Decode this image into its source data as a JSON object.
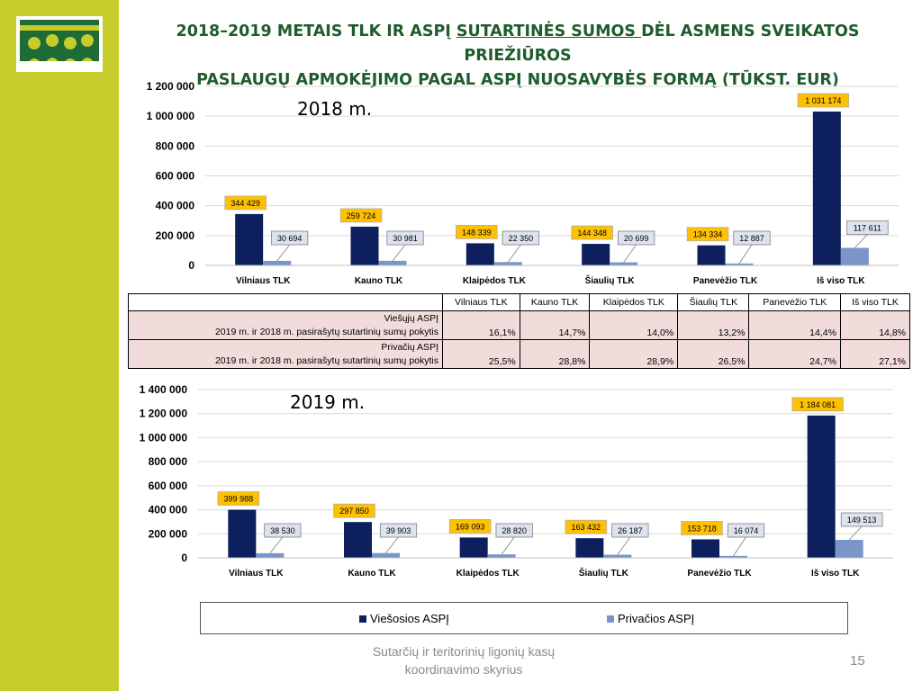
{
  "title": {
    "part1": "2018–2019 METAIS TLK IR ASPĮ ",
    "underlined": "SUTARTINĖS SUMOS ",
    "part2": "DĖL ASMENS SVEIKATOS PRIEŽIŪROS",
    "line2": "PASLAUGŲ APMOKĖJIMO PAGAL ASPĮ NUOSAVYBĖS FORMĄ (TŪKST. EUR)"
  },
  "colors": {
    "public": "#0d1f5c",
    "private": "#7a96c8",
    "sidebar": "#c5cc2b",
    "title": "#1e5c2b",
    "label_fill": "#ffc000"
  },
  "chart_data": [
    {
      "type": "bar",
      "title": "2018 m.",
      "categories": [
        "Vilniaus TLK",
        "Kauno TLK",
        "Klaipėdos TLK",
        "Šiaulių TLK",
        "Panevėžio TLK",
        "Iš viso TLK"
      ],
      "series": [
        {
          "name": "Viešosios ASPĮ",
          "values": [
            344429,
            259724,
            148339,
            144348,
            134334,
            1031174
          ],
          "labels": [
            "344 429",
            "259 724",
            "148 339",
            "144 348",
            "134 334",
            "1 031 174"
          ]
        },
        {
          "name": "Privačios ASPĮ",
          "values": [
            30694,
            30981,
            22350,
            20699,
            12887,
            117611
          ],
          "labels": [
            "30 694",
            "30 981",
            "22 350",
            "20 699",
            "12 887",
            "117 611"
          ]
        }
      ],
      "ylim": [
        0,
        1200000
      ],
      "yticks": [
        "0",
        "200 000",
        "400 000",
        "600 000",
        "800 000",
        "1 000 000",
        "1 200 000"
      ],
      "grid": true
    },
    {
      "type": "bar",
      "title": "2019 m.",
      "categories": [
        "Vilniaus TLK",
        "Kauno TLK",
        "Klaipėdos TLK",
        "Šiaulių TLK",
        "Panevėžio TLK",
        "Iš viso TLK"
      ],
      "series": [
        {
          "name": "Viešosios ASPĮ",
          "values": [
            399988,
            297850,
            169093,
            163432,
            153718,
            1184081
          ],
          "labels": [
            "399 988",
            "297 850",
            "169 093",
            "163 432",
            "153 718",
            "1 184 081"
          ]
        },
        {
          "name": "Privačios ASPĮ",
          "values": [
            38530,
            39903,
            28820,
            26187,
            16074,
            149513
          ],
          "labels": [
            "38 530",
            "39 903",
            "28 820",
            "26 187",
            "16 074",
            "149 513"
          ]
        }
      ],
      "ylim": [
        0,
        1400000
      ],
      "yticks": [
        "0",
        "200 000",
        "400 000",
        "600 000",
        "800 000",
        "1 000 000",
        "1 200 000",
        "1 400 000"
      ],
      "grid": true
    }
  ],
  "table": {
    "headers": [
      "Vilniaus TLK",
      "Kauno TLK",
      "Klaipėdos TLK",
      "Šiaulių TLK",
      "Panevėžio TLK",
      "Iš viso TLK"
    ],
    "rows": [
      {
        "label1": "Viešųjų ASPĮ",
        "label2": "2019 m. ir 2018 m. pasirašytų sutartinių sumų pokytis",
        "values": [
          "16,1%",
          "14,7%",
          "14,0%",
          "13,2%",
          "14,4%",
          "14,8%"
        ]
      },
      {
        "label1": "Privačių ASPĮ",
        "label2": "2019 m. ir 2018 m. pasirašytų sutartinių sumų pokytis",
        "values": [
          "25,5%",
          "28,8%",
          "28,9%",
          "26,5%",
          "24,7%",
          "27,1%"
        ]
      }
    ]
  },
  "legend": {
    "public": "Viešosios ASPĮ",
    "private": "Privačios ASPĮ"
  },
  "footer": {
    "line1": "Sutarčių ir teritorinių ligonių kasų",
    "line2": "koordinavimo skyrius",
    "page": "15"
  }
}
